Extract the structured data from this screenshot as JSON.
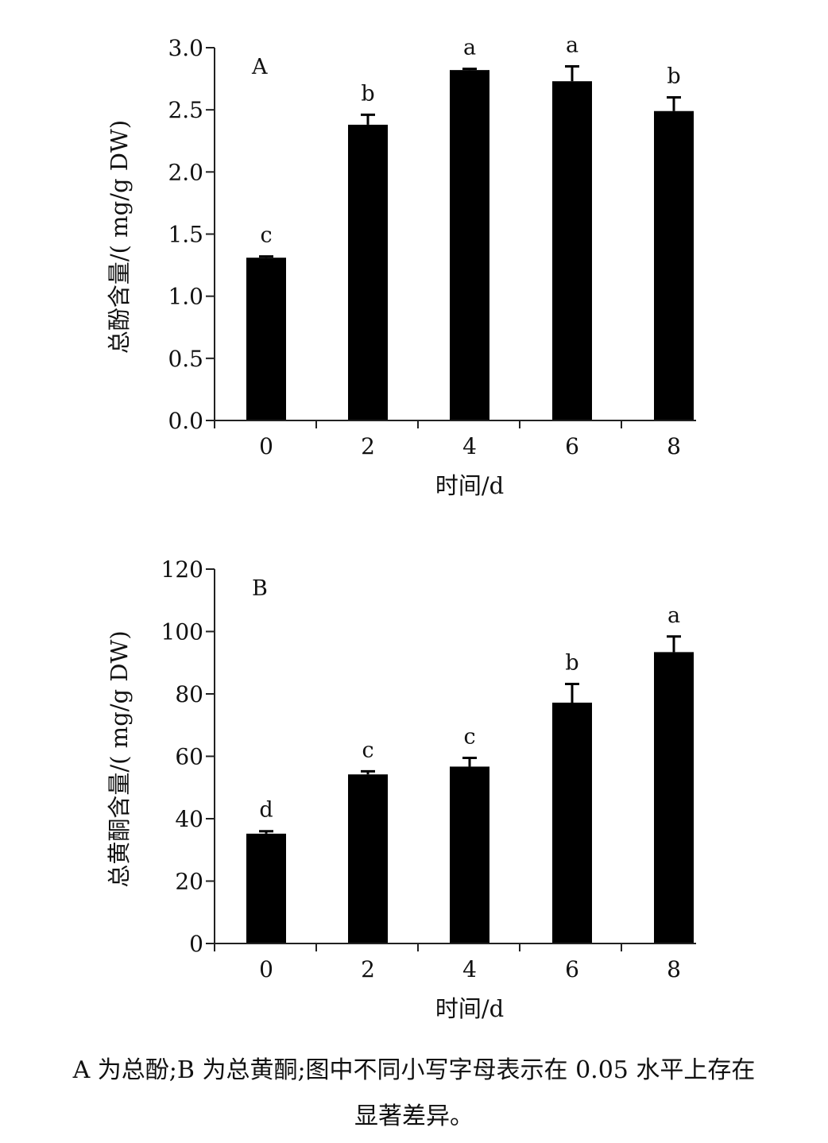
{
  "chart_data": [
    {
      "panel": "A",
      "type": "bar",
      "categories": [
        "0",
        "2",
        "4",
        "6",
        "8"
      ],
      "values": [
        1.31,
        2.38,
        2.82,
        2.73,
        2.49
      ],
      "errors": [
        0.01,
        0.08,
        0.01,
        0.12,
        0.11
      ],
      "letters": [
        "c",
        "b",
        "a",
        "a",
        "b"
      ],
      "xlabel": "时间/d",
      "ylabel": "总酚含量/( mg/g DW)",
      "ylim": [
        0,
        3.0
      ],
      "yticks": [
        "0.0",
        "0.5",
        "1.0",
        "1.5",
        "2.0",
        "2.5",
        "3.0"
      ],
      "bar_color": "#000000"
    },
    {
      "panel": "B",
      "type": "bar",
      "categories": [
        "0",
        "2",
        "4",
        "6",
        "8"
      ],
      "values": [
        35.2,
        54.2,
        56.7,
        77.2,
        93.4
      ],
      "errors": [
        0.8,
        1.0,
        2.8,
        6.0,
        5.0
      ],
      "letters": [
        "d",
        "c",
        "c",
        "b",
        "a"
      ],
      "xlabel": "时间/d",
      "ylabel": "总黄酮含量/( mg/g DW)",
      "ylim": [
        0,
        120
      ],
      "yticks": [
        "0",
        "20",
        "40",
        "60",
        "80",
        "100",
        "120"
      ],
      "bar_color": "#000000"
    }
  ],
  "caption": {
    "line1": "A 为总酚;B 为总黄酮;图中不同小写字母表示在 0.05 水平上存在",
    "line2": "显著差异。"
  }
}
